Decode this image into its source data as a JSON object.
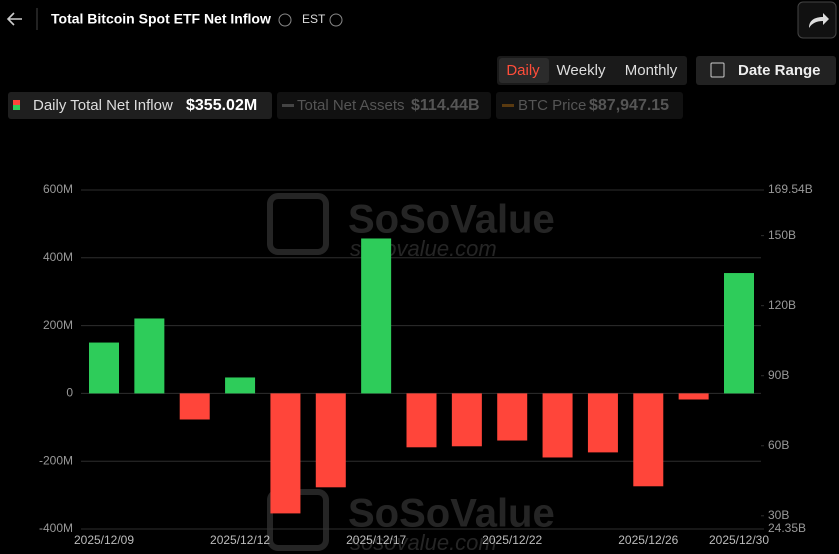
{
  "header": {
    "title": "Total Bitcoin Spot ETF Net Inflow",
    "timezone": "EST",
    "tabs": [
      "Daily",
      "Weekly",
      "Monthly"
    ],
    "date_range": "Date Range"
  },
  "legend": [
    {
      "label": "Daily Total Net Inflow",
      "value": "$355.02M"
    },
    {
      "label": "Total Net Assets",
      "value": "$114.44B"
    },
    {
      "label": "BTC Price",
      "value": "$87,947.15"
    }
  ],
  "watermark": {
    "brand": "SoSoValue",
    "site": "sosovalue.com"
  },
  "chart_data": {
    "type": "bar",
    "categories": [
      "2025/12/09",
      null,
      null,
      "2025/12/12",
      null,
      null,
      "2025/12/17",
      null,
      null,
      "2025/12/22",
      null,
      null,
      "2025/12/26",
      null,
      "2025/12/30"
    ],
    "series": [
      {
        "name": "Daily Total Net Inflow",
        "values": [
          150,
          221,
          -77,
          47,
          -354,
          -277,
          457,
          -159,
          -156,
          -139,
          -189,
          -174,
          -274,
          -18,
          355.02
        ]
      }
    ],
    "positive_color": "#2ecc5a",
    "negative_color": "#ff453a",
    "ylim": [
      -400,
      600
    ],
    "yticks": [
      {
        "value": -400,
        "label": "-400M"
      },
      {
        "value": -200,
        "label": "-200M"
      },
      0,
      {
        "value": 200,
        "label": "200M"
      },
      {
        "value": 400,
        "label": "400M"
      },
      {
        "value": 600,
        "label": "600M"
      }
    ],
    "y2lim": [
      24.35,
      169.54
    ],
    "y2ticks": [
      {
        "value": 24.35,
        "label": "24.35B"
      },
      {
        "value": 30,
        "label": "30B"
      },
      {
        "value": 60,
        "label": "60B"
      },
      {
        "value": 90,
        "label": "90B"
      },
      {
        "value": 120,
        "label": "120B"
      },
      {
        "value": 150,
        "label": "150B"
      },
      {
        "value": 169.54,
        "label": "169.54B"
      }
    ],
    "grid": true
  }
}
